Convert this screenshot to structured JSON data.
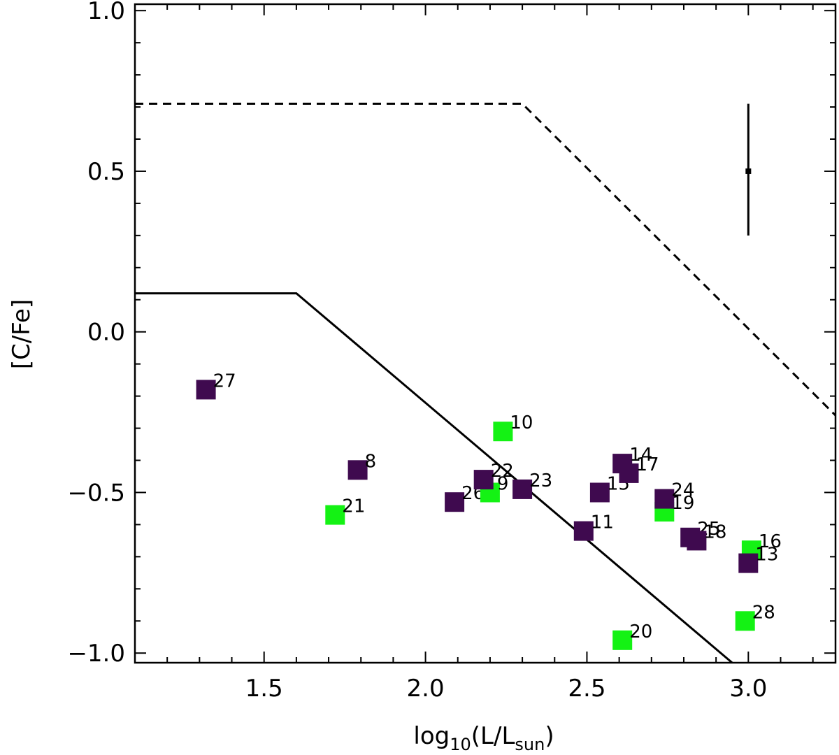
{
  "chart_data": {
    "type": "scatter",
    "title": "",
    "xlabel": "log10(L/Lsun)",
    "xlabel_parts": {
      "base": "log",
      "base_sub": "10",
      "open": "(L/L",
      "unit_sub": "sun",
      "close": ")"
    },
    "ylabel": "[C/Fe]",
    "xlim": [
      1.1,
      3.27
    ],
    "ylim": [
      -1.03,
      1.02
    ],
    "x_ticks": [
      {
        "value": 1.5,
        "label": "1.5"
      },
      {
        "value": 2.0,
        "label": "2.0"
      },
      {
        "value": 2.5,
        "label": "2.5"
      },
      {
        "value": 3.0,
        "label": "3.0"
      }
    ],
    "y_ticks": [
      {
        "value": 1.0,
        "label": "1.0"
      },
      {
        "value": 0.5,
        "label": "0.5"
      },
      {
        "value": 0.0,
        "label": "0.0"
      },
      {
        "value": -0.5,
        "label": "−0.5"
      },
      {
        "value": -1.0,
        "label": "−1.0"
      }
    ],
    "x_minor_step": 0.1,
    "y_minor_step": 0.1,
    "grid": false,
    "colors": {
      "purple": "#3f0a4f",
      "green": "#14f214",
      "line": "#000000"
    },
    "lines": [
      {
        "style": "solid",
        "points": [
          [
            1.1,
            0.12
          ],
          [
            1.6,
            0.12
          ],
          [
            2.95,
            -1.03
          ]
        ]
      },
      {
        "style": "dashed",
        "points": [
          [
            1.1,
            0.71
          ],
          [
            2.3,
            0.71
          ],
          [
            3.27,
            -0.26
          ]
        ]
      }
    ],
    "error_bar": {
      "x": 3.0,
      "y": 0.5,
      "ylow": 0.3,
      "yhigh": 0.71
    },
    "points": [
      {
        "label": "27",
        "x": 1.32,
        "y": -0.18,
        "color": "purple"
      },
      {
        "label": "8",
        "x": 1.79,
        "y": -0.43,
        "color": "purple"
      },
      {
        "label": "21",
        "x": 1.72,
        "y": -0.57,
        "color": "green"
      },
      {
        "label": "26",
        "x": 2.09,
        "y": -0.53,
        "color": "purple"
      },
      {
        "label": "9",
        "x": 2.2,
        "y": -0.5,
        "color": "green"
      },
      {
        "label": "22",
        "x": 2.18,
        "y": -0.46,
        "color": "purple"
      },
      {
        "label": "10",
        "x": 2.24,
        "y": -0.31,
        "color": "green"
      },
      {
        "label": "23",
        "x": 2.3,
        "y": -0.49,
        "color": "purple"
      },
      {
        "label": "11",
        "x": 2.49,
        "y": -0.62,
        "color": "purple"
      },
      {
        "label": "15",
        "x": 2.54,
        "y": -0.5,
        "color": "purple"
      },
      {
        "label": "14",
        "x": 2.61,
        "y": -0.41,
        "color": "purple"
      },
      {
        "label": "17",
        "x": 2.63,
        "y": -0.44,
        "color": "purple"
      },
      {
        "label": "20",
        "x": 2.61,
        "y": -0.96,
        "color": "green"
      },
      {
        "label": "19",
        "x": 2.74,
        "y": -0.56,
        "color": "green"
      },
      {
        "label": "24",
        "x": 2.74,
        "y": -0.52,
        "color": "purple"
      },
      {
        "label": "25",
        "x": 2.82,
        "y": -0.64,
        "color": "purple"
      },
      {
        "label": "18",
        "x": 2.84,
        "y": -0.65,
        "color": "purple"
      },
      {
        "label": "16",
        "x": 3.01,
        "y": -0.68,
        "color": "green"
      },
      {
        "label": "13",
        "x": 3.0,
        "y": -0.72,
        "color": "purple"
      },
      {
        "label": "28",
        "x": 2.99,
        "y": -0.9,
        "color": "green"
      }
    ]
  }
}
